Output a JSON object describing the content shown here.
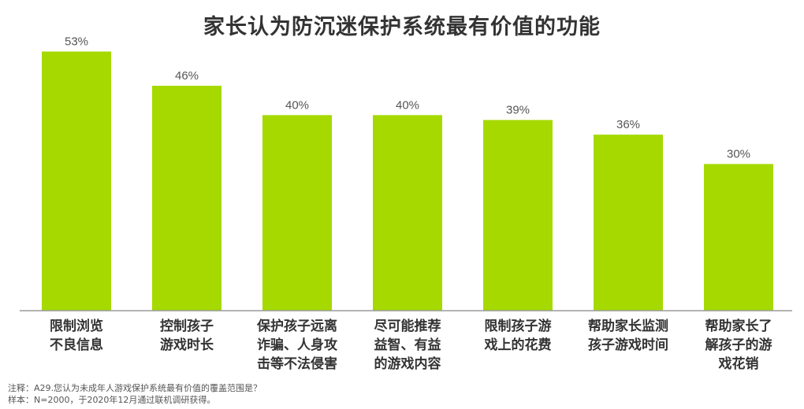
{
  "chart_data": {
    "type": "bar",
    "title": "家长认为防沉迷保护系统最有价值的功能",
    "categories": [
      [
        "限制浏览",
        "不良信息"
      ],
      [
        "控制孩子",
        "游戏时长"
      ],
      [
        "保护孩子远离",
        "诈骗、人身攻",
        "击等不法侵害"
      ],
      [
        "尽可能推荐",
        "益智、有益",
        "的游戏内容"
      ],
      [
        "限制孩子游",
        "戏上的花费"
      ],
      [
        "帮助家长监测",
        "孩子游戏时间"
      ],
      [
        "帮助家长了",
        "解孩子的游",
        "戏花销"
      ]
    ],
    "values": [
      53,
      46,
      40,
      40,
      39,
      36,
      30
    ],
    "value_labels": [
      "53%",
      "46%",
      "40%",
      "40%",
      "39%",
      "36%",
      "30%"
    ],
    "unit": "%",
    "ylim": [
      0,
      60
    ],
    "grid": false,
    "bar_color": "#a5d900",
    "axis_color": "#9a9a9a"
  },
  "notes": {
    "line1": "注释：A29.您认为未成年人游戏保护系统最有价值的覆盖范围是？",
    "line2": "样本：N=2000，于2020年12月通过联机调研获得。"
  }
}
